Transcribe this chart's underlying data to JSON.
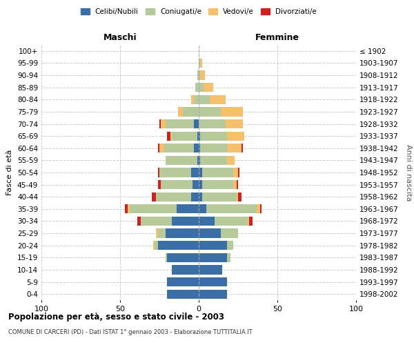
{
  "age_groups": [
    "0-4",
    "5-9",
    "10-14",
    "15-19",
    "20-24",
    "25-29",
    "30-34",
    "35-39",
    "40-44",
    "45-49",
    "50-54",
    "55-59",
    "60-64",
    "65-69",
    "70-74",
    "75-79",
    "80-84",
    "85-89",
    "90-94",
    "95-99",
    "100+"
  ],
  "birth_years": [
    "1998-2002",
    "1993-1997",
    "1988-1992",
    "1983-1987",
    "1978-1982",
    "1973-1977",
    "1968-1972",
    "1963-1967",
    "1958-1962",
    "1953-1957",
    "1948-1952",
    "1943-1947",
    "1938-1942",
    "1933-1937",
    "1928-1932",
    "1923-1927",
    "1918-1922",
    "1913-1917",
    "1908-1912",
    "1903-1907",
    "≤ 1902"
  ],
  "male": {
    "celibi": [
      20,
      20,
      17,
      20,
      26,
      21,
      17,
      14,
      5,
      4,
      5,
      1,
      3,
      1,
      3,
      0,
      0,
      0,
      0,
      0,
      0
    ],
    "coniugati": [
      0,
      0,
      0,
      1,
      2,
      5,
      20,
      30,
      22,
      20,
      20,
      20,
      19,
      16,
      18,
      10,
      3,
      2,
      1,
      0,
      0
    ],
    "vedovi": [
      0,
      0,
      0,
      0,
      1,
      1,
      0,
      1,
      0,
      0,
      0,
      0,
      3,
      1,
      3,
      3,
      2,
      0,
      0,
      0,
      0
    ],
    "divorziati": [
      0,
      0,
      0,
      0,
      0,
      0,
      2,
      2,
      3,
      2,
      1,
      0,
      1,
      2,
      1,
      0,
      0,
      0,
      0,
      0,
      0
    ]
  },
  "female": {
    "nubili": [
      18,
      18,
      15,
      18,
      18,
      14,
      10,
      5,
      2,
      2,
      2,
      1,
      1,
      1,
      0,
      0,
      0,
      0,
      0,
      0,
      0
    ],
    "coniugate": [
      0,
      0,
      0,
      2,
      4,
      11,
      21,
      32,
      22,
      20,
      20,
      17,
      17,
      17,
      17,
      14,
      7,
      3,
      1,
      1,
      0
    ],
    "vedove": [
      0,
      0,
      0,
      0,
      0,
      0,
      1,
      2,
      1,
      2,
      3,
      5,
      9,
      11,
      11,
      14,
      10,
      6,
      3,
      1,
      0
    ],
    "divorziate": [
      0,
      0,
      0,
      0,
      0,
      0,
      2,
      1,
      2,
      1,
      1,
      0,
      1,
      0,
      0,
      0,
      0,
      0,
      0,
      0,
      0
    ]
  },
  "colors": {
    "celibi": "#3a6ea5",
    "coniugati": "#b5c99a",
    "vedovi": "#f5c06e",
    "divorziati": "#cc2222"
  },
  "title": "Popolazione per età, sesso e stato civile - 2003",
  "subtitle": "COMUNE DI CARCERI (PD) - Dati ISTAT 1° gennaio 2003 - Elaborazione TUTTITALIA.IT",
  "xlabel_left": "Maschi",
  "xlabel_right": "Femmine",
  "ylabel_left": "Fasce di età",
  "ylabel_right": "Anni di nascita",
  "xlim": 100,
  "legend_labels": [
    "Celibi/Nubili",
    "Coniugati/e",
    "Vedovi/e",
    "Divorziati/e"
  ],
  "background_color": "#ffffff",
  "grid_color": "#cccccc"
}
